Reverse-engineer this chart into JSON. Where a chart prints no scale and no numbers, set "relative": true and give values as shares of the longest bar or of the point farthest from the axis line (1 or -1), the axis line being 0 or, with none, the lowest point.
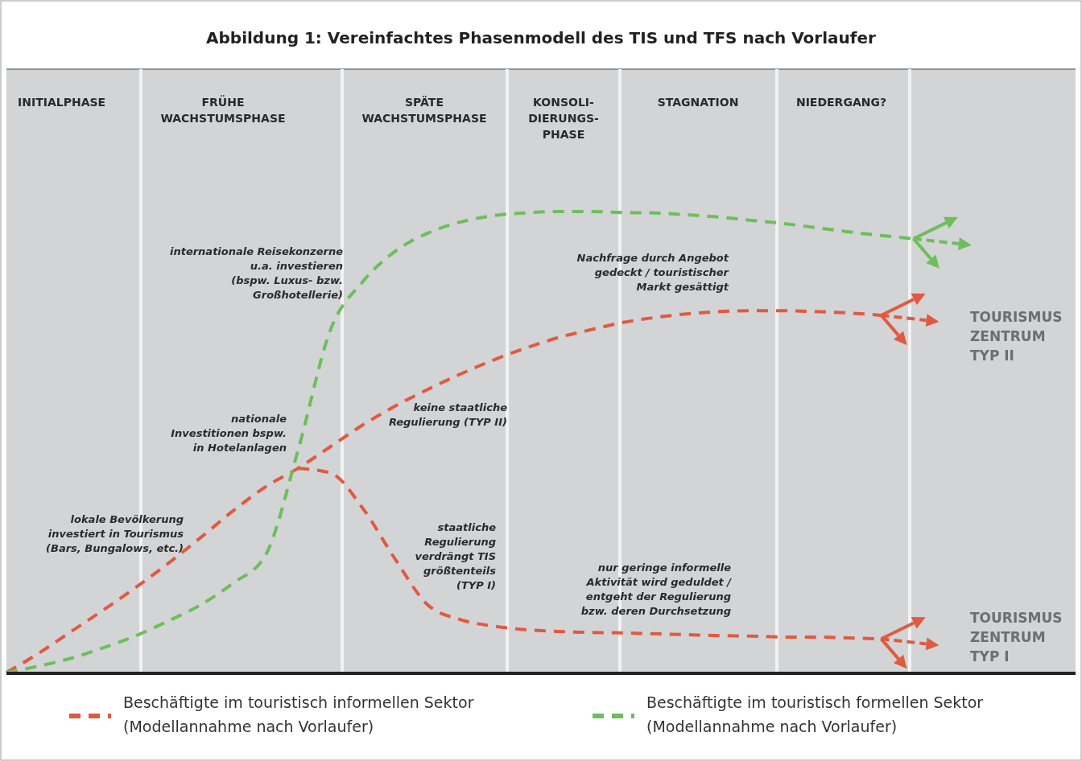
{
  "chart_data": {
    "type": "line",
    "title": "Abbildung 1: Vereinfachtes Phasenmodell des TIS und TFS nach Vorlaufer",
    "relative": true,
    "line_style": "dashed",
    "legend": "bottom",
    "categories": [
      null,
      null,
      null,
      null,
      null,
      null,
      null,
      null,
      null,
      null,
      null,
      null,
      null,
      null,
      null,
      null,
      null,
      null,
      null,
      null,
      null,
      null,
      null,
      null,
      null,
      null,
      null,
      null,
      null,
      null,
      null,
      null,
      null,
      null
    ],
    "series": [
      {
        "name": "Beschäftigte im touristisch informellen Sektor (Modellannahme nach Vorlaufer)",
        "color": "#e05a3f",
        "values": [
          0,
          0.042,
          0.089,
          0.136,
          0.185,
          0.237,
          0.293,
          0.351,
          0.403,
          0.443,
          0.49,
          0.537,
          0.578,
          0.614,
          0.647,
          0.677,
          0.703,
          0.726,
          0.743,
          0.759,
          0.77,
          0.778,
          0.783,
          0.785,
          0.785,
          0.783,
          0.78,
          0.775,
          null,
          null,
          null,
          null,
          null,
          null
        ]
      },
      {
        "color": "#e05a3f",
        "values": [
          null,
          null,
          null,
          null,
          null,
          null,
          null,
          null,
          null,
          0.443,
          0.433,
          0.356,
          0.246,
          0.147,
          0.115,
          0.101,
          0.093,
          0.089,
          0.087,
          0.086,
          0.084,
          0.082,
          0.08,
          0.079,
          0.077,
          0.077,
          0.075,
          0.073,
          null,
          null,
          null,
          null,
          null,
          null
        ]
      },
      {
        "name": "Beschäftigte im touristisch formellen Sektor (Modellannahme nach Vorlaufer)",
        "color": "#6cbf5a",
        "values": [
          0,
          0.014,
          0.031,
          0.054,
          0.08,
          0.112,
          0.147,
          0.194,
          0.255,
          0.482,
          0.743,
          0.848,
          0.914,
          0.953,
          0.977,
          0.991,
          0.997,
          1,
          1,
          0.998,
          0.997,
          0.993,
          0.988,
          0.981,
          0.974,
          0.965,
          0.956,
          0.948,
          0.941,
          null,
          null,
          null,
          null,
          null
        ]
      }
    ],
    "annotations": [
      "INITIALPHASE",
      "FRÜHE\nWACHSTUMSPHASE",
      "SPÄTE\nWACHSTUMSPHASE",
      "KONSOLI-\nDIERUNGS-\nPHASE",
      "STAGNATION",
      "NIEDERGANG?",
      "internationale Reisekonzerne\nu.a. investieren\n(bspw. Luxus- bzw.\nGroßhotellerie)",
      "Nachfrage durch Angebot\ngedeckt / touristischer\nMarkt gesättigt",
      "keine staatliche\nRegulierung (TYP II)",
      "nationale\nInvestitionen bspw.\nin Hotelanlagen",
      "lokale Bevölkerung\ninvestiert in Tourismus\n(Bars, Bungalows, etc.)",
      "staatliche\nRegulierung\nverdrängt TIS\ngrößtenteils\n(TYP I)",
      "nur geringe informelle\nAktivität wird geduldet /\nentgeht der Regulierung\nbzw. deren Durchsetzung",
      "TOURISMUS\nZENTRUM\nTYP II",
      "TOURISMUS\nZENTRUM\nTYP I"
    ]
  }
}
